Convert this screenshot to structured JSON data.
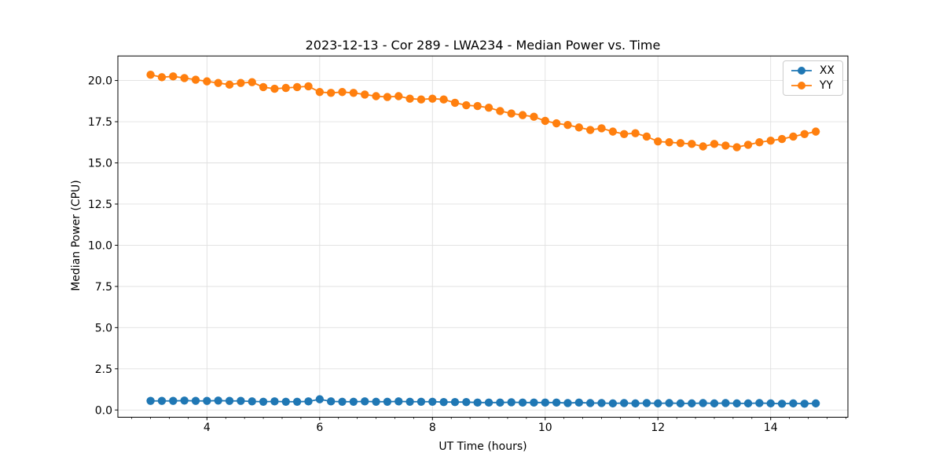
{
  "chart_data": {
    "type": "line",
    "title": "2023-12-13 - Cor 289 - LWA234 - Median Power vs. Time",
    "xlabel": "UT Time (hours)",
    "ylabel": "Median Power (CPU)",
    "xlim": [
      2.42,
      15.37
    ],
    "ylim": [
      -0.44,
      21.49
    ],
    "xticks": [
      4,
      6,
      8,
      10,
      12,
      14
    ],
    "xtick_labels": [
      "4",
      "6",
      "8",
      "10",
      "12",
      "14"
    ],
    "xtick_minor_step": 0.3333333,
    "yticks": [
      0.0,
      2.5,
      5.0,
      7.5,
      10.0,
      12.5,
      15.0,
      17.5,
      20.0
    ],
    "ytick_labels": [
      "0.0",
      "2.5",
      "5.0",
      "7.5",
      "10.0",
      "12.5",
      "15.0",
      "17.5",
      "20.0"
    ],
    "grid": true,
    "legend_position": "upper right",
    "x": [
      3.0,
      3.2,
      3.4,
      3.6,
      3.8,
      4.0,
      4.2,
      4.4,
      4.6,
      4.8,
      5.0,
      5.2,
      5.4,
      5.6,
      5.8,
      6.0,
      6.2,
      6.4,
      6.6,
      6.8,
      7.0,
      7.2,
      7.4,
      7.6,
      7.8,
      8.0,
      8.2,
      8.4,
      8.6,
      8.8,
      9.0,
      9.2,
      9.4,
      9.6,
      9.8,
      10.0,
      10.2,
      10.4,
      10.6,
      10.8,
      11.0,
      11.2,
      11.4,
      11.6,
      11.8,
      12.0,
      12.2,
      12.4,
      12.6,
      12.8,
      13.0,
      13.2,
      13.4,
      13.6,
      13.8,
      14.0,
      14.2,
      14.4,
      14.6,
      14.8
    ],
    "series": [
      {
        "name": "XX",
        "color": "#1f77b4",
        "values": [
          0.55,
          0.55,
          0.55,
          0.57,
          0.55,
          0.55,
          0.57,
          0.55,
          0.55,
          0.52,
          0.5,
          0.52,
          0.5,
          0.5,
          0.52,
          0.65,
          0.52,
          0.5,
          0.5,
          0.52,
          0.5,
          0.5,
          0.52,
          0.5,
          0.5,
          0.5,
          0.48,
          0.48,
          0.48,
          0.45,
          0.45,
          0.45,
          0.47,
          0.45,
          0.45,
          0.45,
          0.45,
          0.42,
          0.45,
          0.42,
          0.42,
          0.4,
          0.42,
          0.4,
          0.42,
          0.4,
          0.42,
          0.4,
          0.4,
          0.42,
          0.4,
          0.42,
          0.4,
          0.4,
          0.42,
          0.4,
          0.38,
          0.4,
          0.38,
          0.4
        ]
      },
      {
        "name": "YY",
        "color": "#ff7f0e",
        "values": [
          20.35,
          20.2,
          20.25,
          20.15,
          20.05,
          19.95,
          19.85,
          19.75,
          19.85,
          19.9,
          19.6,
          19.5,
          19.55,
          19.6,
          19.65,
          19.3,
          19.25,
          19.3,
          19.25,
          19.15,
          19.05,
          19.0,
          19.05,
          18.9,
          18.85,
          18.9,
          18.85,
          18.65,
          18.5,
          18.45,
          18.35,
          18.15,
          18.0,
          17.9,
          17.8,
          17.55,
          17.4,
          17.3,
          17.15,
          17.0,
          17.1,
          16.9,
          16.75,
          16.8,
          16.6,
          16.3,
          16.25,
          16.2,
          16.15,
          16.0,
          16.15,
          16.05,
          15.95,
          16.1,
          16.25,
          16.35,
          16.45,
          16.6,
          16.75,
          16.9
        ]
      }
    ],
    "style": {
      "grid_color": "#e0e0e0",
      "spine_color": "#000000",
      "background": "#ffffff",
      "marker_radius": 5.2,
      "line_width": 1.8
    }
  }
}
